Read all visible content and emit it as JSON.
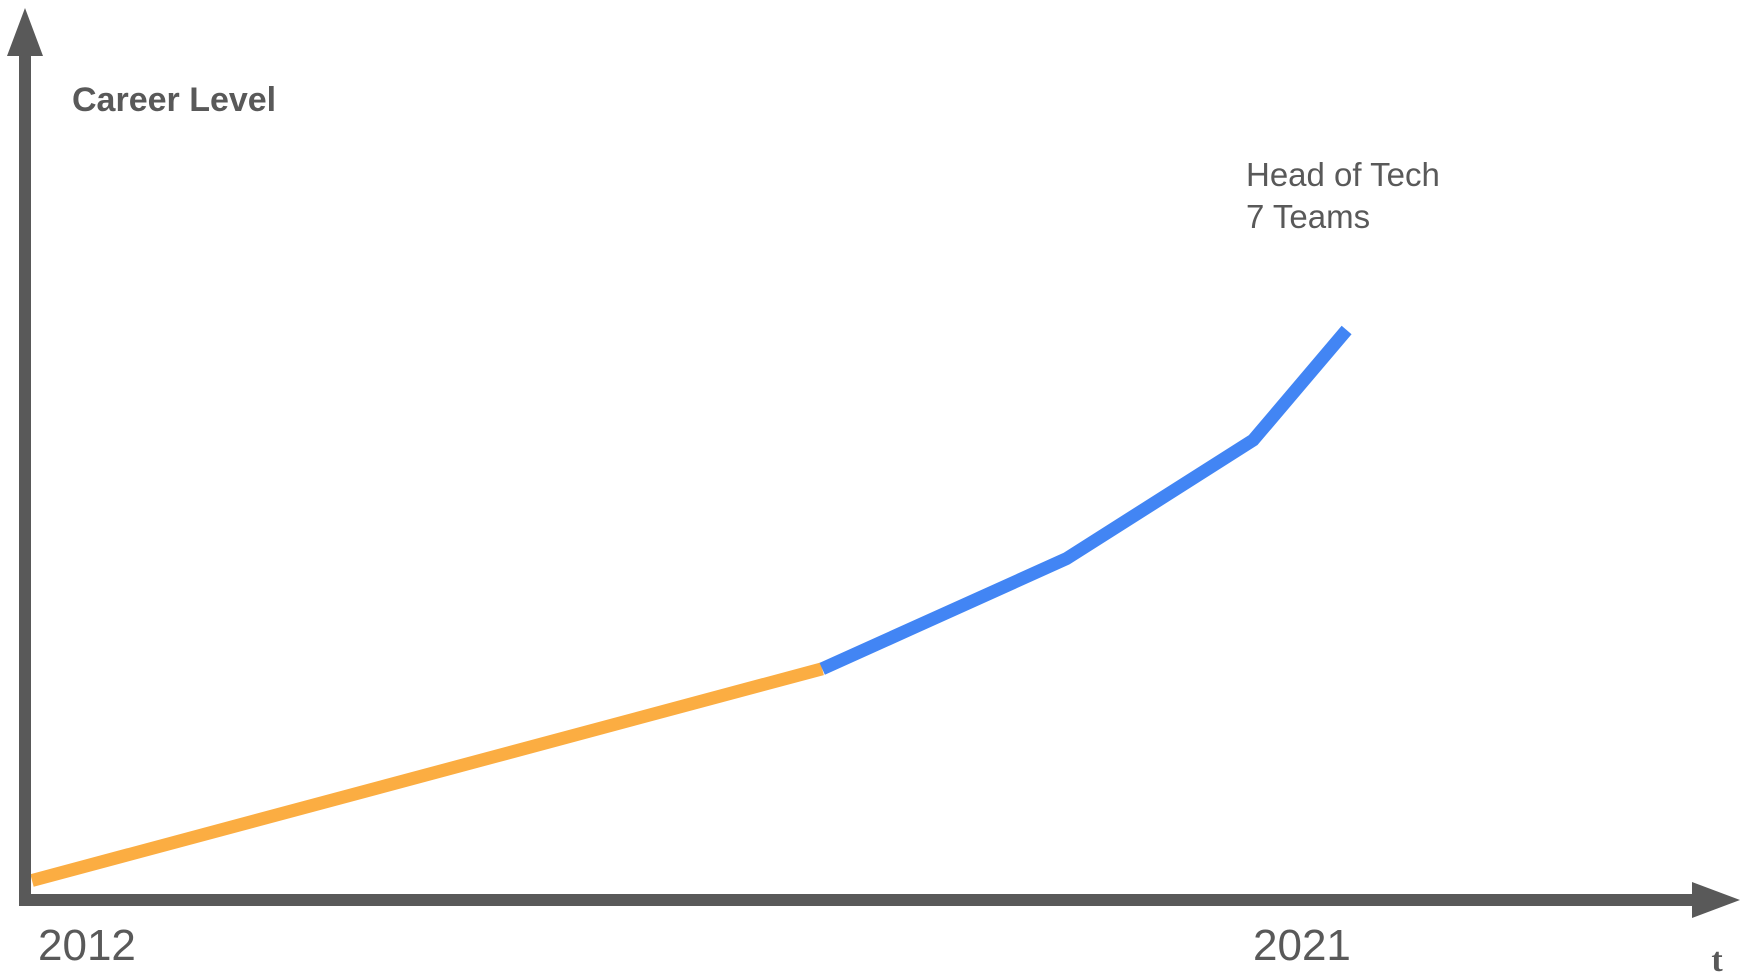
{
  "chart_data": {
    "type": "line",
    "ylabel": "Career Level",
    "xlabel": "t",
    "xlim": [
      2012,
      2021
    ],
    "x_ticks": [
      "2012",
      "2021"
    ],
    "ylim": [
      0,
      10
    ],
    "grid": false,
    "legend": "none",
    "series": [
      {
        "color": "#FBAD42",
        "points": [
          [
            2012.0,
            0.1
          ],
          [
            2017.5,
            2.6
          ]
        ]
      },
      {
        "color": "#4285F4",
        "points": [
          [
            2017.5,
            2.6
          ],
          [
            2019.2,
            3.9
          ],
          [
            2020.5,
            5.3
          ],
          [
            2021.15,
            6.6
          ]
        ]
      }
    ],
    "annotation": {
      "lines": [
        "Head of Tech",
        "7 Teams"
      ],
      "x": 2020.45,
      "y": 8.3
    },
    "colors": {
      "axis": "#595959",
      "text": "#595959"
    }
  }
}
